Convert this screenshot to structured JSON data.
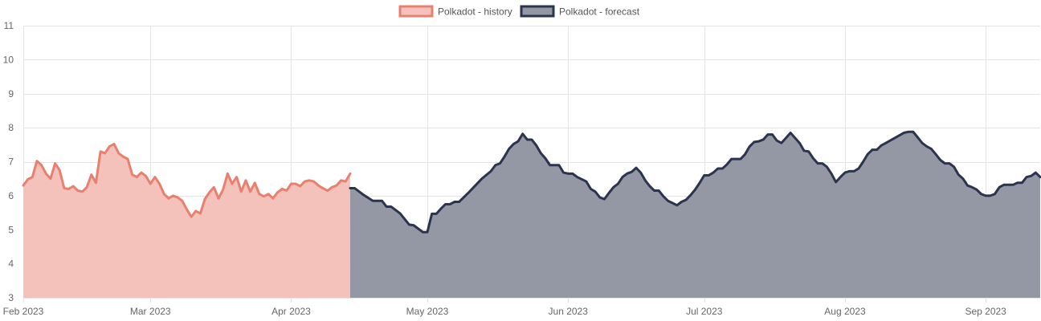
{
  "chart_data": {
    "type": "area",
    "x_type": "date",
    "xlim": [
      "2023-02-01",
      "2023-09-13"
    ],
    "ylim": [
      3,
      11
    ],
    "y_ticks": [
      3,
      4,
      5,
      6,
      7,
      8,
      9,
      10,
      11
    ],
    "x_ticks": [
      {
        "date": "2023-02-01",
        "label": "Feb 2023"
      },
      {
        "date": "2023-03-01",
        "label": "Mar 2023"
      },
      {
        "date": "2023-04-01",
        "label": "Apr 2023"
      },
      {
        "date": "2023-05-01",
        "label": "May 2023"
      },
      {
        "date": "2023-06-01",
        "label": "Jun 2023"
      },
      {
        "date": "2023-07-01",
        "label": "Jul 2023"
      },
      {
        "date": "2023-08-01",
        "label": "Aug 2023"
      },
      {
        "date": "2023-09-01",
        "label": "Sep 2023"
      }
    ],
    "grid": true,
    "legend_position": "top",
    "series": [
      {
        "name": "Polkadot - history",
        "line_color": "#e8806f",
        "fill_color": "#f4c2bb",
        "points": [
          [
            "2023-02-01",
            6.3
          ],
          [
            "2023-02-02",
            6.48
          ],
          [
            "2023-02-03",
            6.55
          ],
          [
            "2023-02-04",
            7.02
          ],
          [
            "2023-02-05",
            6.9
          ],
          [
            "2023-02-06",
            6.65
          ],
          [
            "2023-02-07",
            6.5
          ],
          [
            "2023-02-08",
            6.95
          ],
          [
            "2023-02-09",
            6.75
          ],
          [
            "2023-02-10",
            6.22
          ],
          [
            "2023-02-11",
            6.2
          ],
          [
            "2023-02-12",
            6.28
          ],
          [
            "2023-02-13",
            6.15
          ],
          [
            "2023-02-14",
            6.12
          ],
          [
            "2023-02-15",
            6.25
          ],
          [
            "2023-02-16",
            6.62
          ],
          [
            "2023-02-17",
            6.38
          ],
          [
            "2023-02-18",
            7.3
          ],
          [
            "2023-02-19",
            7.25
          ],
          [
            "2023-02-20",
            7.45
          ],
          [
            "2023-02-21",
            7.52
          ],
          [
            "2023-02-22",
            7.25
          ],
          [
            "2023-02-23",
            7.15
          ],
          [
            "2023-02-24",
            7.08
          ],
          [
            "2023-02-25",
            6.62
          ],
          [
            "2023-02-26",
            6.55
          ],
          [
            "2023-02-27",
            6.68
          ],
          [
            "2023-02-28",
            6.58
          ],
          [
            "2023-03-01",
            6.35
          ],
          [
            "2023-03-02",
            6.55
          ],
          [
            "2023-03-03",
            6.35
          ],
          [
            "2023-03-04",
            6.05
          ],
          [
            "2023-03-05",
            5.92
          ],
          [
            "2023-03-06",
            6.0
          ],
          [
            "2023-03-07",
            5.95
          ],
          [
            "2023-03-08",
            5.85
          ],
          [
            "2023-03-09",
            5.6
          ],
          [
            "2023-03-10",
            5.38
          ],
          [
            "2023-03-11",
            5.55
          ],
          [
            "2023-03-12",
            5.48
          ],
          [
            "2023-03-13",
            5.9
          ],
          [
            "2023-03-14",
            6.1
          ],
          [
            "2023-03-15",
            6.25
          ],
          [
            "2023-03-16",
            5.92
          ],
          [
            "2023-03-17",
            6.18
          ],
          [
            "2023-03-18",
            6.65
          ],
          [
            "2023-03-19",
            6.35
          ],
          [
            "2023-03-20",
            6.55
          ],
          [
            "2023-03-21",
            6.12
          ],
          [
            "2023-03-22",
            6.45
          ],
          [
            "2023-03-23",
            6.12
          ],
          [
            "2023-03-24",
            6.38
          ],
          [
            "2023-03-25",
            6.05
          ],
          [
            "2023-03-26",
            5.98
          ],
          [
            "2023-03-27",
            6.05
          ],
          [
            "2023-03-28",
            5.92
          ],
          [
            "2023-03-29",
            6.1
          ],
          [
            "2023-03-30",
            6.2
          ],
          [
            "2023-03-31",
            6.15
          ],
          [
            "2023-04-01",
            6.35
          ],
          [
            "2023-04-02",
            6.35
          ],
          [
            "2023-04-03",
            6.28
          ],
          [
            "2023-04-04",
            6.42
          ],
          [
            "2023-04-05",
            6.45
          ],
          [
            "2023-04-06",
            6.42
          ],
          [
            "2023-04-07",
            6.3
          ],
          [
            "2023-04-08",
            6.22
          ],
          [
            "2023-04-09",
            6.15
          ],
          [
            "2023-04-10",
            6.25
          ],
          [
            "2023-04-11",
            6.3
          ],
          [
            "2023-04-12",
            6.45
          ],
          [
            "2023-04-13",
            6.42
          ],
          [
            "2023-04-14",
            6.65
          ]
        ]
      },
      {
        "name": "Polkadot - forecast",
        "line_color": "#2b334d",
        "fill_color": "#9498a5",
        "points": [
          [
            "2023-04-14",
            6.22
          ],
          [
            "2023-04-15",
            6.22
          ],
          [
            "2023-04-17",
            6.02
          ],
          [
            "2023-04-19",
            5.85
          ],
          [
            "2023-04-21",
            5.85
          ],
          [
            "2023-04-22",
            5.68
          ],
          [
            "2023-04-23",
            5.68
          ],
          [
            "2023-04-25",
            5.48
          ],
          [
            "2023-04-27",
            5.15
          ],
          [
            "2023-04-28",
            5.13
          ],
          [
            "2023-04-30",
            4.93
          ],
          [
            "2023-05-01",
            4.93
          ],
          [
            "2023-05-02",
            5.47
          ],
          [
            "2023-05-03",
            5.47
          ],
          [
            "2023-05-04",
            5.62
          ],
          [
            "2023-05-05",
            5.75
          ],
          [
            "2023-05-06",
            5.75
          ],
          [
            "2023-05-07",
            5.82
          ],
          [
            "2023-05-08",
            5.82
          ],
          [
            "2023-05-10",
            6.08
          ],
          [
            "2023-05-11",
            6.22
          ],
          [
            "2023-05-13",
            6.5
          ],
          [
            "2023-05-15",
            6.72
          ],
          [
            "2023-05-16",
            6.9
          ],
          [
            "2023-05-17",
            6.95
          ],
          [
            "2023-05-18",
            7.15
          ],
          [
            "2023-05-19",
            7.38
          ],
          [
            "2023-05-20",
            7.52
          ],
          [
            "2023-05-21",
            7.6
          ],
          [
            "2023-05-22",
            7.82
          ],
          [
            "2023-05-23",
            7.65
          ],
          [
            "2023-05-24",
            7.65
          ],
          [
            "2023-05-25",
            7.48
          ],
          [
            "2023-05-26",
            7.25
          ],
          [
            "2023-05-27",
            7.1
          ],
          [
            "2023-05-28",
            6.9
          ],
          [
            "2023-05-30",
            6.9
          ],
          [
            "2023-05-31",
            6.68
          ],
          [
            "2023-06-01",
            6.65
          ],
          [
            "2023-06-02",
            6.65
          ],
          [
            "2023-06-03",
            6.55
          ],
          [
            "2023-06-05",
            6.42
          ],
          [
            "2023-06-06",
            6.2
          ],
          [
            "2023-06-07",
            6.12
          ],
          [
            "2023-06-08",
            5.95
          ],
          [
            "2023-06-09",
            5.9
          ],
          [
            "2023-06-10",
            6.08
          ],
          [
            "2023-06-11",
            6.25
          ],
          [
            "2023-06-12",
            6.35
          ],
          [
            "2023-06-13",
            6.55
          ],
          [
            "2023-06-14",
            6.65
          ],
          [
            "2023-06-15",
            6.7
          ],
          [
            "2023-06-16",
            6.82
          ],
          [
            "2023-06-17",
            6.68
          ],
          [
            "2023-06-18",
            6.45
          ],
          [
            "2023-06-19",
            6.28
          ],
          [
            "2023-06-20",
            6.15
          ],
          [
            "2023-06-21",
            6.15
          ],
          [
            "2023-06-22",
            5.98
          ],
          [
            "2023-06-23",
            5.85
          ],
          [
            "2023-06-25",
            5.72
          ],
          [
            "2023-06-26",
            5.82
          ],
          [
            "2023-06-27",
            5.88
          ],
          [
            "2023-06-28",
            6.02
          ],
          [
            "2023-06-29",
            6.18
          ],
          [
            "2023-06-30",
            6.38
          ],
          [
            "2023-07-01",
            6.6
          ],
          [
            "2023-07-02",
            6.6
          ],
          [
            "2023-07-03",
            6.68
          ],
          [
            "2023-07-04",
            6.8
          ],
          [
            "2023-07-05",
            6.8
          ],
          [
            "2023-07-06",
            6.92
          ],
          [
            "2023-07-07",
            7.08
          ],
          [
            "2023-07-09",
            7.08
          ],
          [
            "2023-07-10",
            7.22
          ],
          [
            "2023-07-11",
            7.45
          ],
          [
            "2023-07-12",
            7.58
          ],
          [
            "2023-07-13",
            7.6
          ],
          [
            "2023-07-14",
            7.65
          ],
          [
            "2023-07-15",
            7.8
          ],
          [
            "2023-07-16",
            7.8
          ],
          [
            "2023-07-17",
            7.62
          ],
          [
            "2023-07-18",
            7.55
          ],
          [
            "2023-07-19",
            7.7
          ],
          [
            "2023-07-20",
            7.85
          ],
          [
            "2023-07-21",
            7.7
          ],
          [
            "2023-07-22",
            7.55
          ],
          [
            "2023-07-23",
            7.32
          ],
          [
            "2023-07-24",
            7.3
          ],
          [
            "2023-07-25",
            7.1
          ],
          [
            "2023-07-26",
            6.95
          ],
          [
            "2023-07-27",
            6.95
          ],
          [
            "2023-07-28",
            6.85
          ],
          [
            "2023-07-29",
            6.65
          ],
          [
            "2023-07-30",
            6.4
          ],
          [
            "2023-07-31",
            6.55
          ],
          [
            "2023-08-01",
            6.68
          ],
          [
            "2023-08-02",
            6.72
          ],
          [
            "2023-08-03",
            6.72
          ],
          [
            "2023-08-04",
            6.8
          ],
          [
            "2023-08-05",
            7.0
          ],
          [
            "2023-08-06",
            7.22
          ],
          [
            "2023-08-07",
            7.35
          ],
          [
            "2023-08-08",
            7.35
          ],
          [
            "2023-08-09",
            7.48
          ],
          [
            "2023-08-10",
            7.55
          ],
          [
            "2023-08-12",
            7.7
          ],
          [
            "2023-08-14",
            7.85
          ],
          [
            "2023-08-15",
            7.88
          ],
          [
            "2023-08-16",
            7.88
          ],
          [
            "2023-08-17",
            7.72
          ],
          [
            "2023-08-18",
            7.55
          ],
          [
            "2023-08-19",
            7.45
          ],
          [
            "2023-08-20",
            7.38
          ],
          [
            "2023-08-21",
            7.22
          ],
          [
            "2023-08-22",
            7.05
          ],
          [
            "2023-08-23",
            6.95
          ],
          [
            "2023-08-24",
            6.95
          ],
          [
            "2023-08-25",
            6.85
          ],
          [
            "2023-08-26",
            6.62
          ],
          [
            "2023-08-27",
            6.5
          ],
          [
            "2023-08-28",
            6.3
          ],
          [
            "2023-08-29",
            6.25
          ],
          [
            "2023-08-30",
            6.18
          ],
          [
            "2023-08-31",
            6.05
          ],
          [
            "2023-09-01",
            6.0
          ],
          [
            "2023-09-02",
            6.0
          ],
          [
            "2023-09-03",
            6.05
          ],
          [
            "2023-09-04",
            6.25
          ],
          [
            "2023-09-05",
            6.32
          ],
          [
            "2023-09-07",
            6.32
          ],
          [
            "2023-09-08",
            6.38
          ],
          [
            "2023-09-09",
            6.38
          ],
          [
            "2023-09-10",
            6.55
          ],
          [
            "2023-09-11",
            6.58
          ],
          [
            "2023-09-12",
            6.68
          ],
          [
            "2023-09-13",
            6.55
          ]
        ]
      }
    ]
  }
}
